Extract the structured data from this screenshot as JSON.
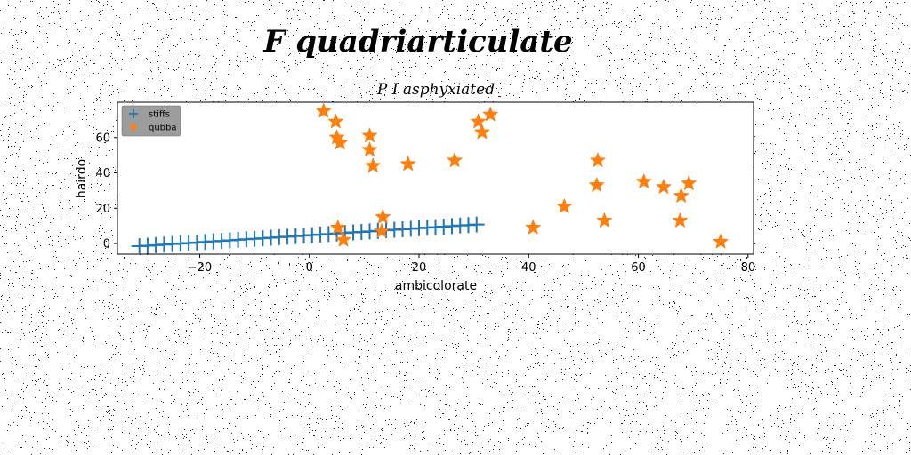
{
  "figure": {
    "suptitle": "F quadriarticulate",
    "background_noise": true
  },
  "chart_data": {
    "type": "scatter",
    "title": "P I asphyxiated",
    "xlabel": "ambicolorate",
    "ylabel": "hairdo",
    "xlim": [
      -35,
      81
    ],
    "ylim": [
      -6,
      80
    ],
    "xticks": [
      -20,
      0,
      20,
      40,
      60,
      80
    ],
    "yticks": [
      0,
      20,
      40,
      60
    ],
    "grid": false,
    "legend": {
      "placement": "top-left",
      "entries": [
        "stiffs",
        "qubba"
      ]
    },
    "series": [
      {
        "name": "stiffs",
        "marker": "plus",
        "color": "#1f77b4",
        "points": [
          [
            -31.0,
            -1.5
          ],
          [
            -29.5,
            -1.2
          ],
          [
            -28.0,
            -0.9
          ],
          [
            -26.5,
            -0.6
          ],
          [
            -25.0,
            -0.3
          ],
          [
            -23.5,
            0.0
          ],
          [
            -22.0,
            0.3
          ],
          [
            -20.5,
            0.6
          ],
          [
            -19.0,
            0.9
          ],
          [
            -17.5,
            1.2
          ],
          [
            -16.0,
            1.5
          ],
          [
            -14.5,
            1.8
          ],
          [
            -13.0,
            2.1
          ],
          [
            -11.5,
            2.4
          ],
          [
            -10.0,
            2.7
          ],
          [
            -8.5,
            3.0
          ],
          [
            -7.0,
            3.3
          ],
          [
            -5.5,
            3.6
          ],
          [
            -4.0,
            3.9
          ],
          [
            -2.5,
            4.2
          ],
          [
            -1.0,
            4.5
          ],
          [
            0.5,
            4.8
          ],
          [
            2.0,
            5.1
          ],
          [
            3.5,
            5.4
          ],
          [
            5.0,
            5.7
          ],
          [
            6.5,
            6.0
          ],
          [
            8.0,
            6.3
          ],
          [
            9.5,
            6.6
          ],
          [
            11.0,
            6.9
          ],
          [
            12.5,
            7.2
          ],
          [
            14.0,
            7.5
          ],
          [
            15.5,
            7.8
          ],
          [
            17.0,
            8.1
          ],
          [
            18.5,
            8.4
          ],
          [
            20.0,
            8.7
          ],
          [
            21.5,
            9.0
          ],
          [
            23.0,
            9.3
          ],
          [
            24.5,
            9.6
          ],
          [
            26.0,
            9.9
          ],
          [
            27.5,
            10.2
          ],
          [
            29.0,
            10.5
          ],
          [
            30.5,
            10.8
          ]
        ]
      },
      {
        "name": "qubba",
        "marker": "star",
        "color": "#ff7f0e",
        "points": [
          [
            2.6,
            75
          ],
          [
            4.8,
            69
          ],
          [
            5.0,
            60
          ],
          [
            5.6,
            57
          ],
          [
            11.0,
            61
          ],
          [
            11.0,
            53
          ],
          [
            11.6,
            44
          ],
          [
            5.2,
            9
          ],
          [
            6.2,
            2
          ],
          [
            13.4,
            15
          ],
          [
            13.2,
            7
          ],
          [
            18.0,
            45
          ],
          [
            26.5,
            47
          ],
          [
            30.8,
            69
          ],
          [
            31.5,
            63
          ],
          [
            33.0,
            73
          ],
          [
            40.8,
            9
          ],
          [
            46.5,
            21
          ],
          [
            52.6,
            47
          ],
          [
            52.4,
            33
          ],
          [
            53.8,
            13
          ],
          [
            61.0,
            35
          ],
          [
            64.6,
            32
          ],
          [
            67.8,
            27
          ],
          [
            69.2,
            34
          ],
          [
            67.6,
            13
          ],
          [
            75.0,
            1
          ]
        ]
      }
    ]
  }
}
